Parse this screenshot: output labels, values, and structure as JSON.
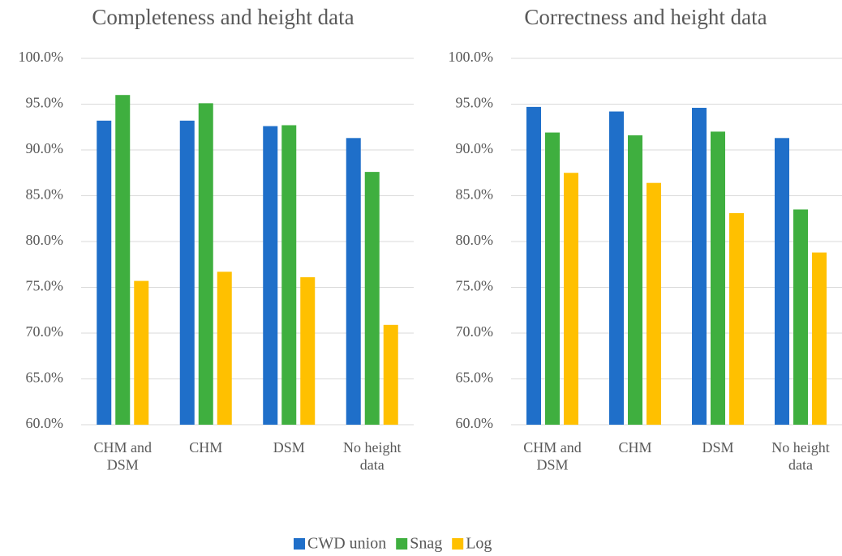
{
  "chart_data": [
    {
      "type": "bar",
      "title": "Completeness and height data",
      "categories": [
        "CHM and DSM",
        "CHM",
        "DSM",
        "No height data"
      ],
      "series": [
        {
          "name": "CWD union",
          "color": "#1f6fc9",
          "values": [
            93.2,
            93.2,
            92.6,
            91.3
          ]
        },
        {
          "name": "Snag",
          "color": "#3faf3f",
          "values": [
            96.0,
            95.1,
            92.7,
            87.6
          ]
        },
        {
          "name": "Log",
          "color": "#ffc000",
          "values": [
            75.7,
            76.7,
            76.1,
            70.9
          ]
        }
      ],
      "ylim": [
        60,
        100
      ],
      "yticks": [
        {
          "value": 60,
          "label": "60.0%"
        },
        {
          "value": 65,
          "label": "65.0%"
        },
        {
          "value": 70,
          "label": "70.0%"
        },
        {
          "value": 75,
          "label": "75.0%"
        },
        {
          "value": 80,
          "label": "80.0%"
        },
        {
          "value": 85,
          "label": "85.0%"
        },
        {
          "value": 90,
          "label": "90.0%"
        },
        {
          "value": 95,
          "label": "95.0%"
        },
        {
          "value": 100,
          "label": "100.0%"
        }
      ],
      "grid": true,
      "legend": "bottom"
    },
    {
      "type": "bar",
      "title": "Correctness and height data",
      "categories": [
        "CHM and DSM",
        "CHM",
        "DSM",
        "No height data"
      ],
      "series": [
        {
          "color": "#1f6fc9",
          "values": [
            94.7,
            94.2,
            94.6,
            91.3
          ]
        },
        {
          "color": "#3faf3f",
          "values": [
            91.9,
            91.6,
            92.0,
            83.5
          ]
        },
        {
          "color": "#ffc000",
          "values": [
            87.5,
            86.4,
            83.1,
            78.8
          ]
        }
      ],
      "ylim": [
        60,
        100
      ],
      "yticks": [
        {
          "value": 60,
          "label": "60.0%"
        },
        {
          "value": 65,
          "label": "65.0%"
        },
        {
          "value": 70,
          "label": "70.0%"
        },
        {
          "value": 75,
          "label": "75.0%"
        },
        {
          "value": 80,
          "label": "80.0%"
        },
        {
          "value": 85,
          "label": "85.0%"
        },
        {
          "value": 90,
          "label": "90.0%"
        },
        {
          "value": 95,
          "label": "95.0%"
        },
        {
          "value": 100,
          "label": "100.0%"
        }
      ],
      "grid": true
    }
  ]
}
